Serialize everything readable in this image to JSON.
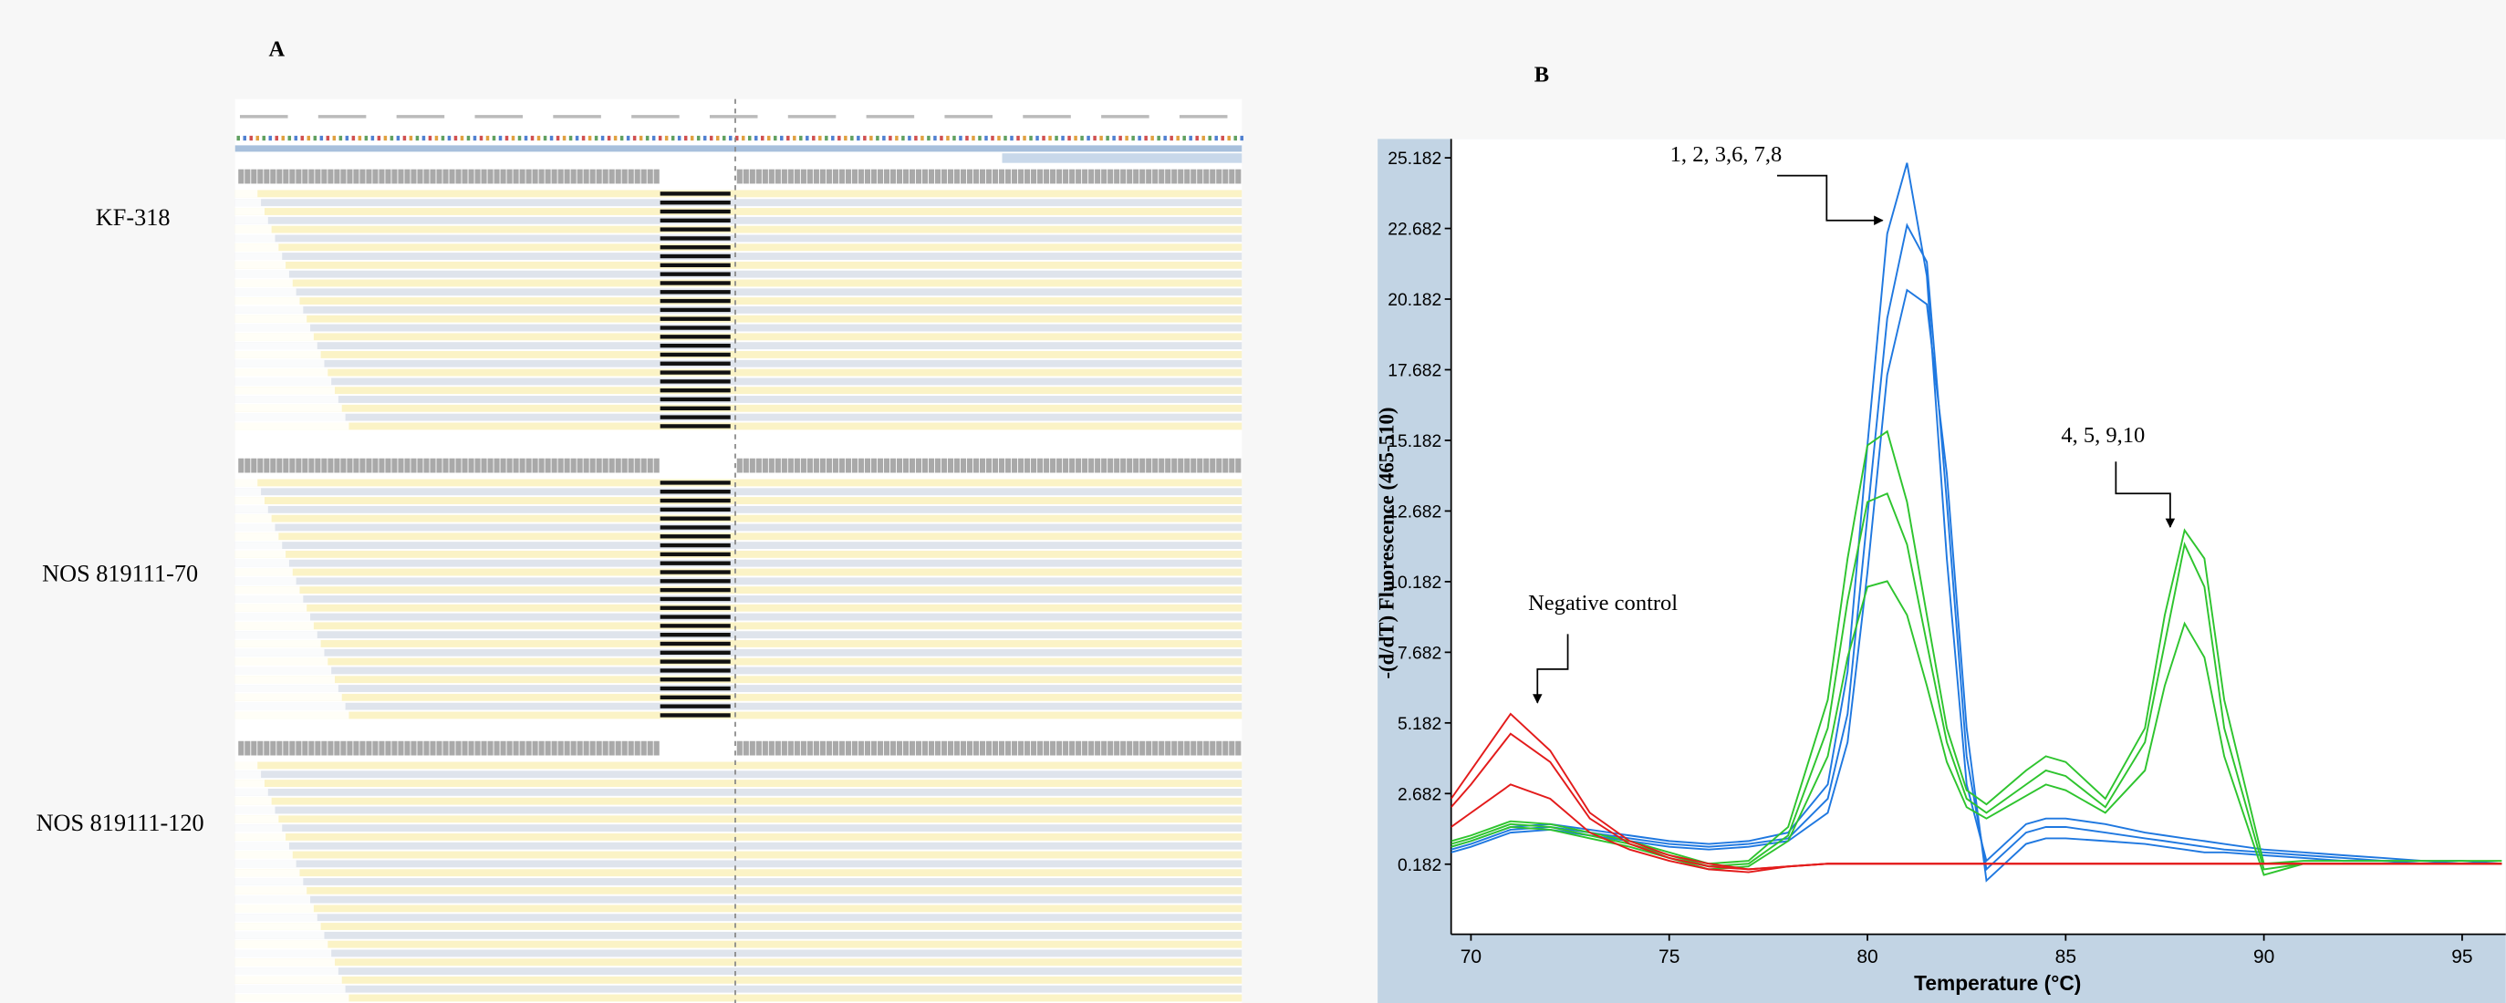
{
  "panel_a": {
    "label": "A",
    "samples": [
      "KF-318",
      "NOS 819111-70",
      "NOS 819111-120"
    ]
  },
  "chart_data": {
    "type": "line",
    "panel_label": "B",
    "x_label": "Temperature (°C)",
    "y_label": "-(d/dT) Fluorescence (465-510)",
    "annotations": [
      "1, 2, 3,6, 7,8",
      "Negative control",
      "4, 5, 9,10"
    ],
    "xlim": [
      69.5,
      96.1
    ],
    "ylim": [
      -2.3,
      25.85
    ],
    "xticks": [
      70,
      75,
      80,
      85,
      90,
      95
    ],
    "yticks": [
      0.182,
      2.682,
      5.182,
      7.682,
      10.182,
      12.682,
      15.182,
      17.682,
      20.182,
      22.682,
      25.182
    ],
    "x": [
      69.5,
      70,
      71,
      72,
      73,
      74,
      75,
      76,
      77,
      78,
      79,
      79.5,
      80,
      80.5,
      81,
      81.5,
      82,
      82.5,
      83,
      84,
      84.5,
      85,
      86,
      87,
      87.5,
      88,
      88.5,
      89,
      90,
      91,
      92,
      93,
      94,
      95,
      96
    ],
    "series": [
      {
        "color": "#1f78e0",
        "values": [
          0.8,
          1.0,
          1.5,
          1.6,
          1.4,
          1.2,
          1.0,
          0.9,
          1.0,
          1.3,
          3.0,
          7.0,
          15.0,
          22.5,
          25.0,
          21.0,
          11.0,
          3.0,
          0.3,
          1.6,
          1.8,
          1.8,
          1.6,
          1.3,
          1.2,
          1.1,
          1.0,
          0.9,
          0.7,
          0.6,
          0.5,
          0.4,
          0.3,
          0.3,
          0.2
        ]
      },
      {
        "color": "#1f78e0",
        "values": [
          0.7,
          0.9,
          1.4,
          1.5,
          1.3,
          1.1,
          0.9,
          0.8,
          0.9,
          1.1,
          2.5,
          5.5,
          12.5,
          19.5,
          22.8,
          21.5,
          13.0,
          4.0,
          0.0,
          1.3,
          1.5,
          1.5,
          1.3,
          1.1,
          1.0,
          0.9,
          0.8,
          0.7,
          0.6,
          0.5,
          0.4,
          0.3,
          0.3,
          0.2,
          0.2
        ]
      },
      {
        "color": "#1f78e0",
        "values": [
          0.6,
          0.8,
          1.3,
          1.4,
          1.2,
          1.0,
          0.8,
          0.7,
          0.8,
          1.0,
          2.0,
          4.5,
          10.5,
          17.5,
          20.5,
          20.0,
          14.0,
          5.0,
          -0.4,
          0.9,
          1.1,
          1.1,
          1.0,
          0.9,
          0.8,
          0.7,
          0.6,
          0.6,
          0.5,
          0.4,
          0.3,
          0.3,
          0.2,
          0.2,
          0.2
        ]
      },
      {
        "color": "#2ec42e",
        "values": [
          1.0,
          1.2,
          1.7,
          1.6,
          1.3,
          1.0,
          0.6,
          0.2,
          0.3,
          1.5,
          6.0,
          11.0,
          15.0,
          15.5,
          13.0,
          9.0,
          5.0,
          2.8,
          2.3,
          3.5,
          4.0,
          3.8,
          2.5,
          5.0,
          9.0,
          12.0,
          11.0,
          6.0,
          0.2,
          0.3,
          0.3,
          0.3,
          0.3,
          0.3,
          0.3
        ]
      },
      {
        "color": "#2ec42e",
        "values": [
          0.9,
          1.1,
          1.6,
          1.5,
          1.2,
          0.9,
          0.5,
          0.1,
          0.2,
          1.2,
          5.0,
          9.5,
          13.0,
          13.3,
          11.5,
          8.0,
          4.5,
          2.5,
          2.0,
          3.0,
          3.5,
          3.3,
          2.2,
          4.5,
          8.0,
          11.5,
          10.0,
          5.0,
          0.0,
          0.2,
          0.2,
          0.2,
          0.2,
          0.2,
          0.2
        ]
      },
      {
        "color": "#2ec42e",
        "values": [
          0.8,
          1.0,
          1.5,
          1.4,
          1.1,
          0.8,
          0.4,
          0.0,
          0.1,
          1.0,
          4.0,
          7.5,
          10.0,
          10.2,
          9.0,
          6.5,
          3.8,
          2.2,
          1.8,
          2.6,
          3.0,
          2.8,
          2.0,
          3.5,
          6.5,
          8.7,
          7.5,
          4.0,
          -0.2,
          0.2,
          0.2,
          0.2,
          0.2,
          0.2,
          0.2
        ]
      },
      {
        "color": "#e31b1b",
        "values": [
          2.5,
          3.5,
          5.5,
          4.2,
          2.0,
          1.0,
          0.5,
          0.2,
          0.0,
          0.1,
          0.2,
          0.2,
          0.2,
          0.2,
          0.2,
          0.2,
          0.2,
          0.2,
          0.2,
          0.2,
          0.2,
          0.2,
          0.2,
          0.2,
          0.2,
          0.2,
          0.2,
          0.2,
          0.2,
          0.2,
          0.2,
          0.2,
          0.2,
          0.2,
          0.2
        ]
      },
      {
        "color": "#e31b1b",
        "values": [
          2.2,
          3.0,
          4.8,
          3.8,
          1.8,
          0.9,
          0.4,
          0.1,
          0.0,
          0.1,
          0.2,
          0.2,
          0.2,
          0.2,
          0.2,
          0.2,
          0.2,
          0.2,
          0.2,
          0.2,
          0.2,
          0.2,
          0.2,
          0.2,
          0.2,
          0.2,
          0.2,
          0.2,
          0.2,
          0.2,
          0.2,
          0.2,
          0.2,
          0.2,
          0.2
        ]
      },
      {
        "color": "#e31b1b",
        "values": [
          1.5,
          2.0,
          3.0,
          2.5,
          1.3,
          0.7,
          0.3,
          0.0,
          -0.1,
          0.1,
          0.2,
          0.2,
          0.2,
          0.2,
          0.2,
          0.2,
          0.2,
          0.2,
          0.2,
          0.2,
          0.2,
          0.2,
          0.2,
          0.2,
          0.2,
          0.2,
          0.2,
          0.2,
          0.2,
          0.2,
          0.2,
          0.2,
          0.2,
          0.2,
          0.2
        ]
      }
    ]
  }
}
